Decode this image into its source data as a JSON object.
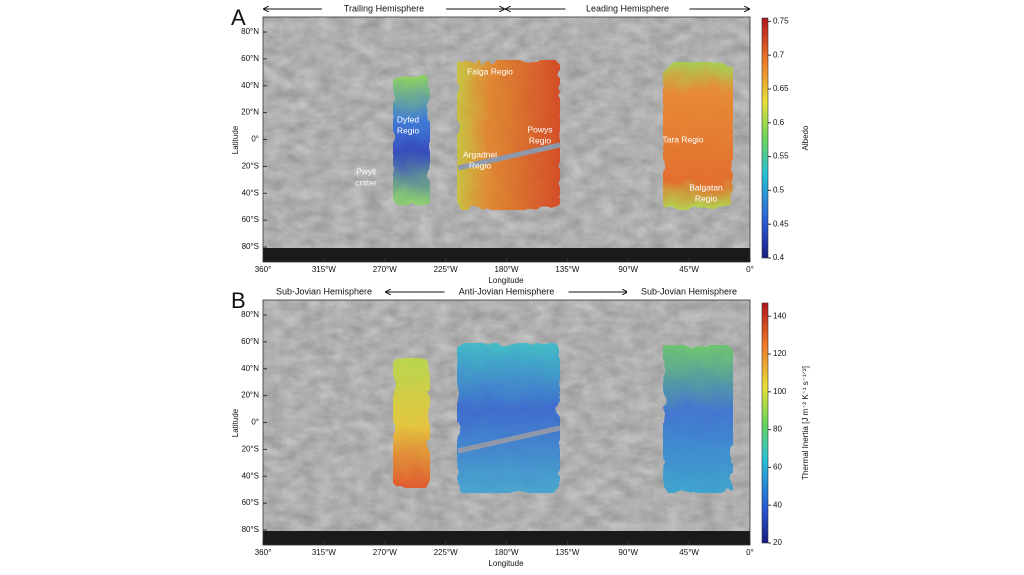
{
  "panels": [
    {
      "letter": "A",
      "hemispheres": [
        "Trailing Hemisphere",
        "Leading Hemisphere"
      ],
      "lat_ticks": [
        "80°N",
        "60°N",
        "40°N",
        "20°N",
        "0°",
        "20°S",
        "40°S",
        "60°S",
        "80°S"
      ],
      "lon_ticks": [
        "360°",
        "315°W",
        "270°W",
        "225°W",
        "180°W",
        "135°W",
        "90°W",
        "45°W",
        "0°"
      ],
      "y_label": "Latitude",
      "x_label": "Longitude",
      "regions": [
        {
          "lines": [
            "Falga Regio"
          ]
        },
        {
          "lines": [
            "Dyfed",
            "Regio"
          ]
        },
        {
          "lines": [
            "Powys",
            "Regio"
          ]
        },
        {
          "lines": [
            "Argadnel",
            "Regio"
          ]
        },
        {
          "lines": [
            "Pwyll",
            "crater"
          ]
        },
        {
          "lines": [
            "Tara Regio"
          ]
        },
        {
          "lines": [
            "Balgatan",
            "Regio"
          ]
        }
      ],
      "colorbar": {
        "label": "Albedo",
        "lim": [
          0.4,
          0.755
        ],
        "ticks": [
          0.4,
          0.45,
          0.5,
          0.55,
          0.6,
          0.65,
          0.7,
          0.75
        ]
      }
    },
    {
      "letter": "B",
      "hemispheres": [
        "Sub-Jovian Hemisphere",
        "Anti-Jovian Hemisphere",
        "Sub-Jovian Hemisphere"
      ],
      "lat_ticks": [
        "80°N",
        "60°N",
        "40°N",
        "20°N",
        "0°",
        "20°S",
        "40°S",
        "60°S",
        "80°S"
      ],
      "lon_ticks": [
        "360°",
        "315°W",
        "270°W",
        "225°W",
        "180°W",
        "135°W",
        "90°W",
        "45°W",
        "0°"
      ],
      "y_label": "Latitude",
      "x_label": "Longitude",
      "regions": [],
      "colorbar": {
        "label": "Thermal Inertia [J m⁻² K⁻¹ s⁻¹ᐟ²]",
        "lim": [
          20,
          147
        ],
        "ticks": [
          20,
          40,
          60,
          80,
          100,
          120,
          140
        ]
      }
    }
  ]
}
